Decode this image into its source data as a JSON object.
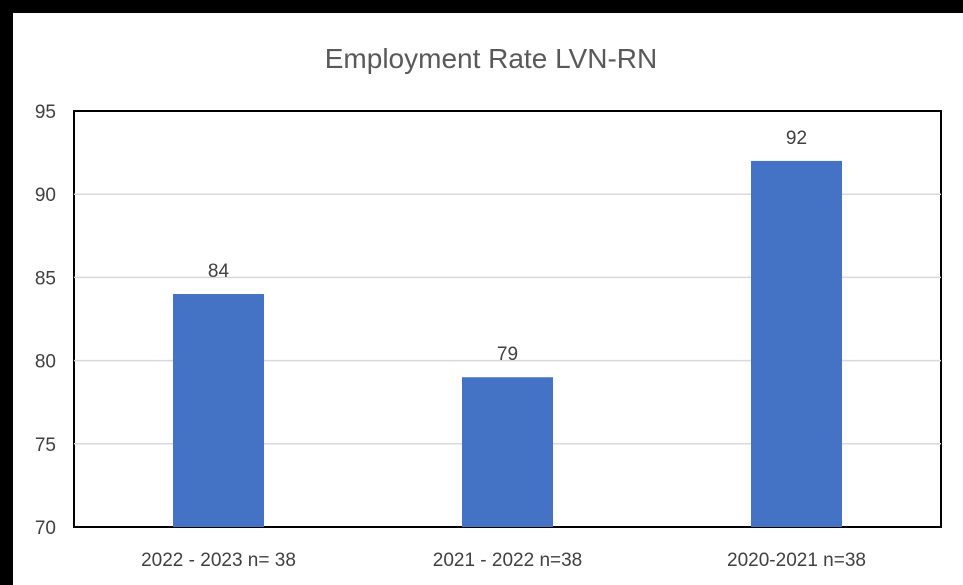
{
  "chart_data": {
    "type": "bar",
    "title": "Employment Rate LVN-RN",
    "xlabel": "",
    "ylabel": "",
    "categories": [
      "2022 - 2023 n= 38",
      "2021 - 2022 n=38",
      "2020-2021 n=38"
    ],
    "values": [
      84,
      79,
      92
    ],
    "data_labels": [
      "84",
      "79",
      "92"
    ],
    "ylim": [
      70,
      95
    ],
    "yticks": [
      "70",
      "75",
      "80",
      "85",
      "90",
      "95"
    ],
    "grid": true,
    "legend": "none",
    "colors": {
      "bar": "#4472C4",
      "grid": "#D9D9D9",
      "text": "#404040"
    }
  }
}
